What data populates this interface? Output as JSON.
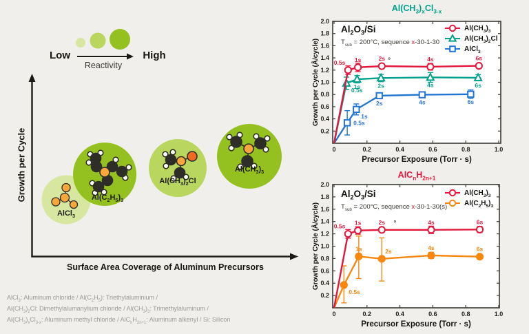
{
  "diagram": {
    "reactivity": {
      "low": "Low",
      "high": "High",
      "caption": "Reactivity",
      "circle_colors": [
        "#d8e7a0",
        "#b9d65e",
        "#94c11f"
      ]
    },
    "y_axis": "Growth per Cycle",
    "x_axis": "Surface Area Coverage of Aluminum Precursors",
    "molecules": [
      {
        "id": "aluminum-chloride",
        "label": "AlCl~3~",
        "circle_color": "#d8e7a0",
        "size": "small"
      },
      {
        "id": "triethylaluminium",
        "label": "Al(C~2~H~5~)~3~",
        "circle_color": "#94c11f",
        "size": "large"
      },
      {
        "id": "dimethylaluminum-chloride",
        "label": "Al(CH~3~)~2~Cl",
        "circle_color": "#b9d65e",
        "size": "medium"
      },
      {
        "id": "trimethylaluminum",
        "label": "Al(CH~3~)~3~",
        "circle_color": "#94c11f",
        "size": "large"
      }
    ],
    "atom_colors": {
      "aluminum": "#f9a63d",
      "chlorine": "#f26a21",
      "carbon": "#2e2d28",
      "hydrogen": "#ffffff"
    }
  },
  "footnotes": [
    "AlCl~3~: Aluminum chloride / Al(C~2~H~5~): Triethylaluminium /",
    "Al(CH~3~)~2~Cl: Dimethylalumanylium chloride / Al(CH~3~)~3~: Trimethylaluminum /",
    "Al(CH~3~)~x~Cl~3-x~: Aluminum methyl chloride / AlC~n~H~2n+1~: Aluminum alkenyl / Si: Silicon"
  ],
  "chart_data": [
    {
      "type": "line",
      "title": "Al(CH~3~)~x~Cl~3-x~",
      "title_color": "#00a08a",
      "substrate": "Al~2~O~3~/Si",
      "conditions": "T~sub~ = 200°C, sequence |x|-30-1-30",
      "xlabel": "Precursor Exposure (Torr · s)",
      "ylabel": "Growth per Cycle (Å/cycle)",
      "xlim": [
        0,
        1.02
      ],
      "ylim": [
        0,
        2.0
      ],
      "xticks": [
        0,
        0.2,
        0.4,
        0.6,
        0.8,
        1.0
      ],
      "xtick_labels": [
        "0",
        "0.2",
        "0.4",
        "0.6",
        "0.8",
        "1.0"
      ],
      "yticks": [
        0.2,
        0.4,
        0.6,
        0.8,
        1.0,
        1.2,
        1.4,
        1.6,
        1.8,
        2.0
      ],
      "ytick_labels": [
        "0.2",
        "0.4",
        "0.6",
        "0.8",
        "1.0",
        "1.2",
        "1.4",
        "1.6",
        "1.8",
        "2.0"
      ],
      "grid": false,
      "legend_position": "top-right",
      "stray_mark": {
        "x": 0.335,
        "y": 1.33,
        "text": "°"
      },
      "series": [
        {
          "name": "Al(CH~3~)~3~",
          "color": "#e3173c",
          "marker": "circle",
          "filled": false,
          "points": [
            {
              "x": 0,
              "y": 0,
              "nomark": true
            },
            {
              "x": 0.085,
              "y": 1.2,
              "err": 0.07,
              "label": "0.5s",
              "lp": "above-left"
            },
            {
              "x": 0.145,
              "y": 1.245,
              "err": 0.07,
              "label": "1s",
              "lp": "above"
            },
            {
              "x": 0.29,
              "y": 1.265,
              "err": 0.035,
              "label": "2s",
              "lp": "above"
            },
            {
              "x": 0.585,
              "y": 1.255,
              "err": 0.055,
              "label": "4s",
              "lp": "above"
            },
            {
              "x": 0.88,
              "y": 1.27,
              "err": 0.035,
              "label": "6s",
              "lp": "above"
            }
          ]
        },
        {
          "name": "Al(CH~3~)~2~Cl",
          "color": "#00a08a",
          "marker": "triangle",
          "filled": false,
          "points": [
            {
              "x": 0,
              "y": 0,
              "nomark": true
            },
            {
              "x": 0.075,
              "y": 0.985,
              "err": 0.1,
              "label": "0.5s",
              "lp": "below-right"
            },
            {
              "x": 0.14,
              "y": 1.05,
              "err": 0.06,
              "label": "1s",
              "lp": "below"
            },
            {
              "x": 0.285,
              "y": 1.07,
              "err": 0.06,
              "label": "2s",
              "lp": "below"
            },
            {
              "x": 0.585,
              "y": 1.08,
              "err": 0.08,
              "label": "4s",
              "lp": "below"
            },
            {
              "x": 0.875,
              "y": 1.075,
              "err": 0.05,
              "label": "6s",
              "lp": "below"
            }
          ]
        },
        {
          "name": "AlCl~3~",
          "color": "#2276d3",
          "marker": "square",
          "filled": false,
          "points": [
            {
              "x": 0,
              "y": 0,
              "nomark": true
            },
            {
              "x": 0.08,
              "y": 0.335,
              "err": 0.2,
              "label": "0.5s",
              "lp": "right"
            },
            {
              "x": 0.135,
              "y": 0.555,
              "err": 0.09,
              "label": "1s",
              "lp": "below-right"
            },
            {
              "x": 0.275,
              "y": 0.78,
              "err": 0.025,
              "label": "2s",
              "lp": "below"
            },
            {
              "x": 0.535,
              "y": 0.795,
              "err": 0.025,
              "label": "4s",
              "lp": "below"
            },
            {
              "x": 0.83,
              "y": 0.805,
              "err": 0.07,
              "label": "6s",
              "lp": "below"
            }
          ]
        }
      ]
    },
    {
      "type": "line",
      "title": "AlC~n~H~2n+1~",
      "title_color": "#e3173c",
      "substrate": "Al~2~O~3~/Si",
      "conditions": "T~sub~ = 200°C, sequence |x|-30-1-30(s)",
      "xlabel": "Precursor Exposure (Torr · s)",
      "ylabel": "Growth per Cycle (Å/cycle)",
      "xlim": [
        0,
        1.02
      ],
      "ylim": [
        0,
        2.0
      ],
      "xticks": [
        0,
        0.2,
        0.4,
        0.6,
        0.8,
        1.0
      ],
      "xtick_labels": [
        "0",
        "0.2",
        "0.4",
        "0.6",
        "0.8",
        "1.0"
      ],
      "yticks": [
        0.2,
        0.4,
        0.6,
        0.8,
        1.0,
        1.2,
        1.4,
        1.6,
        1.8,
        2.0
      ],
      "ytick_labels": [
        "0.2",
        "0.4",
        "0.6",
        "0.8",
        "1.0",
        "1.2",
        "1.4",
        "1.6",
        "1.8",
        "2.0"
      ],
      "grid": false,
      "legend_position": "top-right",
      "stray_mark": {
        "x": 0.37,
        "y": 1.34,
        "text": "°"
      },
      "series": [
        {
          "name": "Al(CH~3~)~3~",
          "color": "#e3173c",
          "marker": "circle",
          "filled": false,
          "points": [
            {
              "x": 0,
              "y": 0,
              "nomark": true
            },
            {
              "x": 0.085,
              "y": 1.2,
              "err": 0.07,
              "label": "0.5s",
              "lp": "above-left"
            },
            {
              "x": 0.145,
              "y": 1.255,
              "err": 0.06,
              "label": "1s",
              "lp": "above"
            },
            {
              "x": 0.29,
              "y": 1.265,
              "err": 0.04,
              "label": "2s",
              "lp": "above"
            },
            {
              "x": 0.59,
              "y": 1.265,
              "err": 0.06,
              "label": "4s",
              "lp": "above"
            },
            {
              "x": 0.885,
              "y": 1.27,
              "err": 0.05,
              "label": "6s",
              "lp": "above"
            }
          ]
        },
        {
          "name": "Al(C~2~H~5~)~3~",
          "color": "#f7870f",
          "marker": "circle",
          "filled": true,
          "points": [
            {
              "x": 0,
              "y": 0,
              "nomark": true
            },
            {
              "x": 0.06,
              "y": 0.37,
              "err_up": 0.31,
              "err_dn": 0.29,
              "label": "0.5s",
              "lp": "below-right"
            },
            {
              "x": 0.15,
              "y": 0.835,
              "err_up": 0.33,
              "err_dn": 0.36,
              "label": "1s",
              "lp": "above"
            },
            {
              "x": 0.29,
              "y": 0.795,
              "err_up": 0.34,
              "err_dn": 0.36,
              "label": "2s",
              "lp": "above-right"
            },
            {
              "x": 0.59,
              "y": 0.85,
              "err_up": 0.05,
              "err_dn": 0.05,
              "label": "4s",
              "lp": "above"
            },
            {
              "x": 0.885,
              "y": 0.83,
              "err_up": 0.02,
              "err_dn": 0.02,
              "label": "6s",
              "lp": "above"
            }
          ]
        }
      ]
    }
  ]
}
